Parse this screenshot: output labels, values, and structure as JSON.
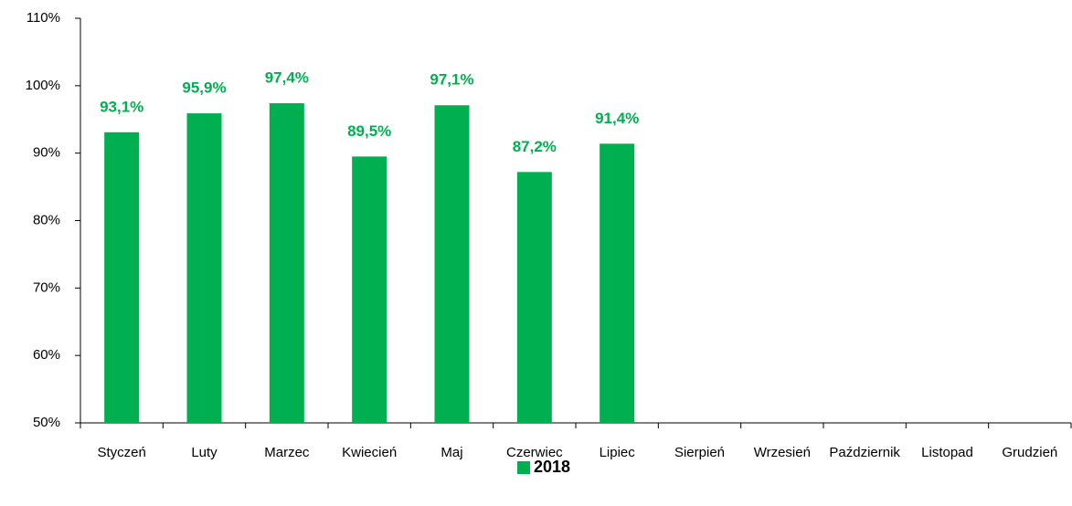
{
  "chart_data": {
    "type": "bar",
    "categories": [
      "Styczeń",
      "Luty",
      "Marzec",
      "Kwiecień",
      "Maj",
      "Czerwiec",
      "Lipiec",
      "Sierpień",
      "Wrzesień",
      "Październik",
      "Listopad",
      "Grudzień"
    ],
    "series": [
      {
        "name": "2018",
        "color": "#00b050",
        "values": [
          93.1,
          95.9,
          97.4,
          89.5,
          97.1,
          87.2,
          91.4,
          null,
          null,
          null,
          null,
          null
        ],
        "value_labels": [
          "93,1%",
          "95,9%",
          "97,4%",
          "89,5%",
          "97,1%",
          "87,2%",
          "91,4%",
          null,
          null,
          null,
          null,
          null
        ]
      }
    ],
    "ylim": [
      50,
      110
    ],
    "yticks": [
      {
        "value": 50,
        "label": "50%"
      },
      {
        "value": 60,
        "label": "60%"
      },
      {
        "value": 70,
        "label": "70%"
      },
      {
        "value": 80,
        "label": "80%"
      },
      {
        "value": 90,
        "label": "90%"
      },
      {
        "value": 100,
        "label": "100%"
      },
      {
        "value": 110,
        "label": "110%"
      }
    ],
    "legend": "bottom"
  }
}
